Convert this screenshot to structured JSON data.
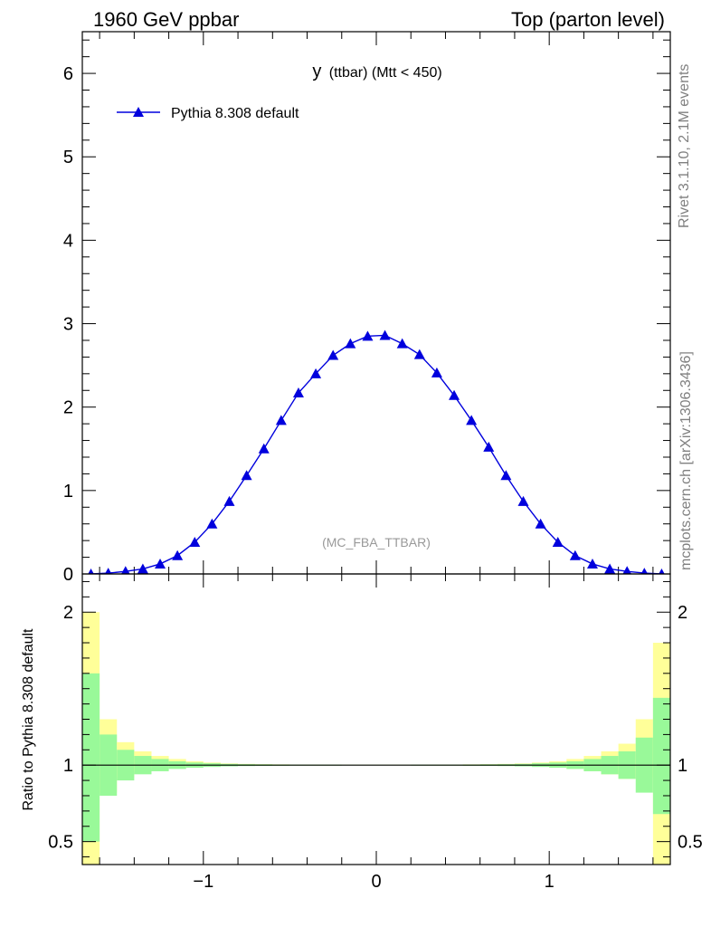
{
  "header": {
    "left": "1960 GeV ppbar",
    "right": "Top (parton level)"
  },
  "side_labels": {
    "rivet": "Rivet 3.1.10,  2.1M events",
    "mcplots": "mcplots.cern.ch [arXiv:1306.3436]"
  },
  "chart_data": [
    {
      "type": "line",
      "title_main": "y",
      "title_sub": "(ttbar) (Mtt < 450)",
      "watermark": "(MC_FBA_TTBAR)",
      "xlim": [
        -1.7,
        1.7
      ],
      "ylim": [
        0,
        6.5
      ],
      "yticks": [
        0,
        1,
        2,
        3,
        4,
        5,
        6
      ],
      "ytick_labels": [
        "0",
        "1",
        "2",
        "3",
        "4",
        "5",
        "6"
      ],
      "legend_position": "top-left",
      "colors": {
        "series": "#0000dd"
      },
      "series": [
        {
          "name": "Pythia 8.308 default",
          "marker": "triangle",
          "x": [
            -1.65,
            -1.55,
            -1.45,
            -1.35,
            -1.25,
            -1.15,
            -1.05,
            -0.95,
            -0.85,
            -0.75,
            -0.65,
            -0.55,
            -0.45,
            -0.35,
            -0.25,
            -0.15,
            -0.05,
            0.05,
            0.15,
            0.25,
            0.35,
            0.45,
            0.55,
            0.65,
            0.75,
            0.85,
            0.95,
            1.05,
            1.15,
            1.25,
            1.35,
            1.45,
            1.55,
            1.65
          ],
          "y": [
            0.0,
            0.01,
            0.03,
            0.06,
            0.12,
            0.22,
            0.38,
            0.6,
            0.87,
            1.18,
            1.5,
            1.84,
            2.17,
            2.4,
            2.62,
            2.76,
            2.85,
            2.86,
            2.76,
            2.63,
            2.41,
            2.14,
            1.84,
            1.52,
            1.18,
            0.87,
            0.6,
            0.38,
            0.22,
            0.12,
            0.06,
            0.03,
            0.01,
            0.0
          ]
        }
      ]
    },
    {
      "type": "area",
      "ylabel": "Ratio to Pythia 8.308 default",
      "xlim": [
        -1.7,
        1.7
      ],
      "ylim": [
        0.35,
        2.25
      ],
      "xticks": [
        -1,
        0,
        1
      ],
      "xtick_labels": [
        "−1",
        "0",
        "1"
      ],
      "yticks": [
        0.5,
        1,
        2
      ],
      "ytick_labels": [
        "0.5",
        "1",
        "2"
      ],
      "reference_line": 1,
      "colors": {
        "inner_band": "#99f999",
        "outer_band": "#ffff99",
        "line": "#000000"
      },
      "bins": {
        "edges": [
          -1.7,
          -1.6,
          -1.5,
          -1.4,
          -1.3,
          -1.2,
          -1.1,
          -1.0,
          -0.9,
          -0.8,
          -0.7,
          -0.6,
          -0.5,
          -0.4,
          -0.3,
          -0.2,
          -0.1,
          0.0,
          0.1,
          0.2,
          0.3,
          0.4,
          0.5,
          0.6,
          0.7,
          0.8,
          0.9,
          1.0,
          1.1,
          1.2,
          1.3,
          1.4,
          1.5,
          1.6,
          1.7
        ],
        "inner_lo": [
          0.5,
          0.8,
          0.9,
          0.94,
          0.96,
          0.975,
          0.983,
          0.988,
          0.992,
          0.994,
          0.995,
          0.996,
          0.997,
          0.997,
          0.997,
          0.998,
          0.998,
          0.998,
          0.998,
          0.997,
          0.997,
          0.997,
          0.996,
          0.995,
          0.994,
          0.992,
          0.988,
          0.983,
          0.975,
          0.96,
          0.94,
          0.91,
          0.82,
          0.68
        ],
        "inner_hi": [
          1.6,
          1.2,
          1.1,
          1.06,
          1.04,
          1.025,
          1.017,
          1.012,
          1.008,
          1.006,
          1.005,
          1.004,
          1.003,
          1.003,
          1.003,
          1.002,
          1.002,
          1.002,
          1.002,
          1.003,
          1.003,
          1.003,
          1.004,
          1.005,
          1.006,
          1.008,
          1.012,
          1.017,
          1.025,
          1.04,
          1.06,
          1.09,
          1.18,
          1.44
        ],
        "outer_lo": [
          0.3,
          0.82,
          0.92,
          0.96,
          0.975,
          0.985,
          0.99,
          0.993,
          0.995,
          0.996,
          0.997,
          0.997,
          0.998,
          0.998,
          0.998,
          0.999,
          0.999,
          0.999,
          0.999,
          0.998,
          0.998,
          0.998,
          0.997,
          0.996,
          0.995,
          0.993,
          0.99,
          0.985,
          0.975,
          0.96,
          0.94,
          0.91,
          0.92,
          0.3
        ],
        "outer_hi": [
          2.0,
          1.3,
          1.15,
          1.09,
          1.06,
          1.04,
          1.025,
          1.017,
          1.011,
          1.008,
          1.006,
          1.005,
          1.004,
          1.004,
          1.003,
          1.003,
          1.003,
          1.003,
          1.003,
          1.003,
          1.004,
          1.004,
          1.005,
          1.006,
          1.008,
          1.011,
          1.017,
          1.025,
          1.04,
          1.06,
          1.09,
          1.14,
          1.3,
          1.8
        ]
      }
    }
  ]
}
